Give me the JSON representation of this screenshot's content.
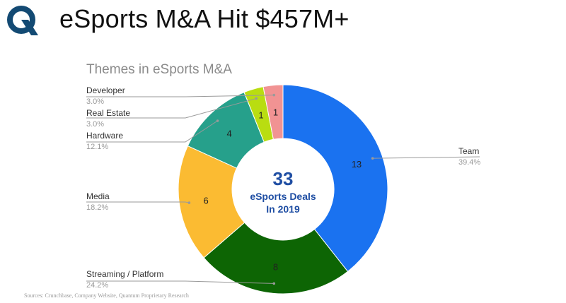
{
  "page": {
    "title": "eSports M&A Hit $457M+",
    "sources": "Sources: Crunchbase, Company Website, Quantum Proprietary Research"
  },
  "logo": {
    "icon": "q-logo-icon",
    "color": "#134a73"
  },
  "chart_data": {
    "type": "pie",
    "donut": true,
    "title": "Themes in eSports M&A",
    "center_text": {
      "number": "33",
      "line1": "eSports Deals",
      "line2": "In 2019"
    },
    "center_color": "#1f4ea3",
    "total": 33,
    "slices": [
      {
        "label": "Team",
        "value": 13,
        "percent": "39.4%",
        "color": "#1a72f0"
      },
      {
        "label": "Streaming / Platform",
        "value": 8,
        "percent": "24.2%",
        "color": "#0d6504"
      },
      {
        "label": "Media",
        "value": 6,
        "percent": "18.2%",
        "color": "#fbbb32"
      },
      {
        "label": "Hardware",
        "value": 4,
        "percent": "12.1%",
        "color": "#26a08b"
      },
      {
        "label": "Real Estate",
        "value": 1,
        "percent": "3.0%",
        "color": "#b9dd11"
      },
      {
        "label": "Developer",
        "value": 1,
        "percent": "3.0%",
        "color": "#f19393"
      }
    ]
  }
}
